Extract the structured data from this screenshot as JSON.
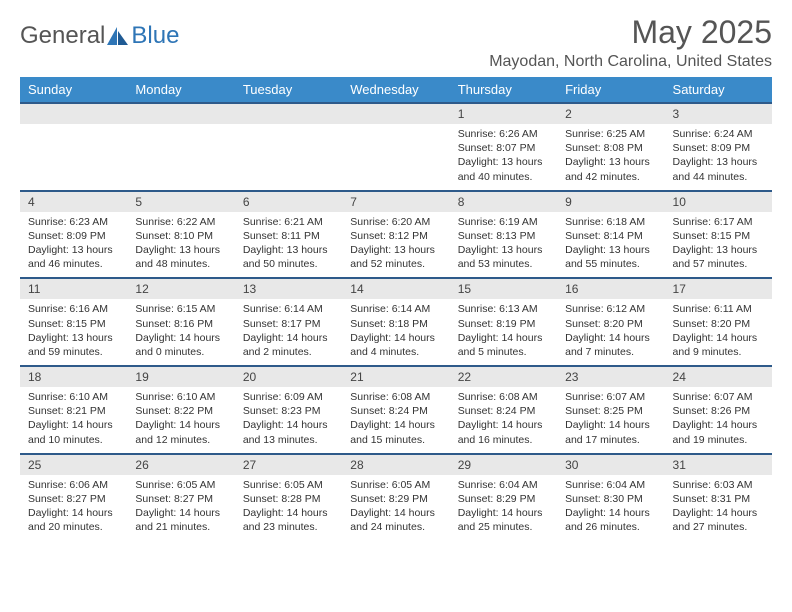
{
  "logo": {
    "text1": "General",
    "text2": "Blue"
  },
  "title": "May 2025",
  "location": "Mayodan, North Carolina, United States",
  "colors": {
    "header_bg": "#3a8ac9",
    "header_border": "#2e5a8a",
    "daynum_bg": "#e8e8e8",
    "logo_blue": "#2e75b6"
  },
  "weekdays": [
    "Sunday",
    "Monday",
    "Tuesday",
    "Wednesday",
    "Thursday",
    "Friday",
    "Saturday"
  ],
  "weeks": [
    [
      null,
      null,
      null,
      null,
      {
        "n": "1",
        "sr": "Sunrise: 6:26 AM",
        "ss": "Sunset: 8:07 PM",
        "dl": "Daylight: 13 hours and 40 minutes."
      },
      {
        "n": "2",
        "sr": "Sunrise: 6:25 AM",
        "ss": "Sunset: 8:08 PM",
        "dl": "Daylight: 13 hours and 42 minutes."
      },
      {
        "n": "3",
        "sr": "Sunrise: 6:24 AM",
        "ss": "Sunset: 8:09 PM",
        "dl": "Daylight: 13 hours and 44 minutes."
      }
    ],
    [
      {
        "n": "4",
        "sr": "Sunrise: 6:23 AM",
        "ss": "Sunset: 8:09 PM",
        "dl": "Daylight: 13 hours and 46 minutes."
      },
      {
        "n": "5",
        "sr": "Sunrise: 6:22 AM",
        "ss": "Sunset: 8:10 PM",
        "dl": "Daylight: 13 hours and 48 minutes."
      },
      {
        "n": "6",
        "sr": "Sunrise: 6:21 AM",
        "ss": "Sunset: 8:11 PM",
        "dl": "Daylight: 13 hours and 50 minutes."
      },
      {
        "n": "7",
        "sr": "Sunrise: 6:20 AM",
        "ss": "Sunset: 8:12 PM",
        "dl": "Daylight: 13 hours and 52 minutes."
      },
      {
        "n": "8",
        "sr": "Sunrise: 6:19 AM",
        "ss": "Sunset: 8:13 PM",
        "dl": "Daylight: 13 hours and 53 minutes."
      },
      {
        "n": "9",
        "sr": "Sunrise: 6:18 AM",
        "ss": "Sunset: 8:14 PM",
        "dl": "Daylight: 13 hours and 55 minutes."
      },
      {
        "n": "10",
        "sr": "Sunrise: 6:17 AM",
        "ss": "Sunset: 8:15 PM",
        "dl": "Daylight: 13 hours and 57 minutes."
      }
    ],
    [
      {
        "n": "11",
        "sr": "Sunrise: 6:16 AM",
        "ss": "Sunset: 8:15 PM",
        "dl": "Daylight: 13 hours and 59 minutes."
      },
      {
        "n": "12",
        "sr": "Sunrise: 6:15 AM",
        "ss": "Sunset: 8:16 PM",
        "dl": "Daylight: 14 hours and 0 minutes."
      },
      {
        "n": "13",
        "sr": "Sunrise: 6:14 AM",
        "ss": "Sunset: 8:17 PM",
        "dl": "Daylight: 14 hours and 2 minutes."
      },
      {
        "n": "14",
        "sr": "Sunrise: 6:14 AM",
        "ss": "Sunset: 8:18 PM",
        "dl": "Daylight: 14 hours and 4 minutes."
      },
      {
        "n": "15",
        "sr": "Sunrise: 6:13 AM",
        "ss": "Sunset: 8:19 PM",
        "dl": "Daylight: 14 hours and 5 minutes."
      },
      {
        "n": "16",
        "sr": "Sunrise: 6:12 AM",
        "ss": "Sunset: 8:20 PM",
        "dl": "Daylight: 14 hours and 7 minutes."
      },
      {
        "n": "17",
        "sr": "Sunrise: 6:11 AM",
        "ss": "Sunset: 8:20 PM",
        "dl": "Daylight: 14 hours and 9 minutes."
      }
    ],
    [
      {
        "n": "18",
        "sr": "Sunrise: 6:10 AM",
        "ss": "Sunset: 8:21 PM",
        "dl": "Daylight: 14 hours and 10 minutes."
      },
      {
        "n": "19",
        "sr": "Sunrise: 6:10 AM",
        "ss": "Sunset: 8:22 PM",
        "dl": "Daylight: 14 hours and 12 minutes."
      },
      {
        "n": "20",
        "sr": "Sunrise: 6:09 AM",
        "ss": "Sunset: 8:23 PM",
        "dl": "Daylight: 14 hours and 13 minutes."
      },
      {
        "n": "21",
        "sr": "Sunrise: 6:08 AM",
        "ss": "Sunset: 8:24 PM",
        "dl": "Daylight: 14 hours and 15 minutes."
      },
      {
        "n": "22",
        "sr": "Sunrise: 6:08 AM",
        "ss": "Sunset: 8:24 PM",
        "dl": "Daylight: 14 hours and 16 minutes."
      },
      {
        "n": "23",
        "sr": "Sunrise: 6:07 AM",
        "ss": "Sunset: 8:25 PM",
        "dl": "Daylight: 14 hours and 17 minutes."
      },
      {
        "n": "24",
        "sr": "Sunrise: 6:07 AM",
        "ss": "Sunset: 8:26 PM",
        "dl": "Daylight: 14 hours and 19 minutes."
      }
    ],
    [
      {
        "n": "25",
        "sr": "Sunrise: 6:06 AM",
        "ss": "Sunset: 8:27 PM",
        "dl": "Daylight: 14 hours and 20 minutes."
      },
      {
        "n": "26",
        "sr": "Sunrise: 6:05 AM",
        "ss": "Sunset: 8:27 PM",
        "dl": "Daylight: 14 hours and 21 minutes."
      },
      {
        "n": "27",
        "sr": "Sunrise: 6:05 AM",
        "ss": "Sunset: 8:28 PM",
        "dl": "Daylight: 14 hours and 23 minutes."
      },
      {
        "n": "28",
        "sr": "Sunrise: 6:05 AM",
        "ss": "Sunset: 8:29 PM",
        "dl": "Daylight: 14 hours and 24 minutes."
      },
      {
        "n": "29",
        "sr": "Sunrise: 6:04 AM",
        "ss": "Sunset: 8:29 PM",
        "dl": "Daylight: 14 hours and 25 minutes."
      },
      {
        "n": "30",
        "sr": "Sunrise: 6:04 AM",
        "ss": "Sunset: 8:30 PM",
        "dl": "Daylight: 14 hours and 26 minutes."
      },
      {
        "n": "31",
        "sr": "Sunrise: 6:03 AM",
        "ss": "Sunset: 8:31 PM",
        "dl": "Daylight: 14 hours and 27 minutes."
      }
    ]
  ]
}
